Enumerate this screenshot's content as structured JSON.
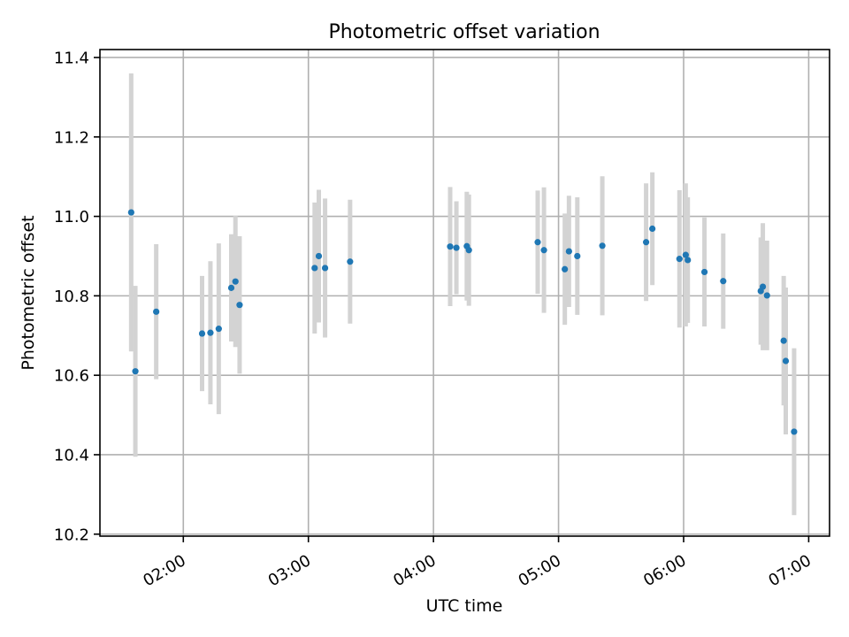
{
  "chart_data": {
    "type": "scatter",
    "title": "Photometric offset variation",
    "xlabel": "UTC time",
    "ylabel": "Photometric offset",
    "x_unit": "UTC time (HH:MM)",
    "xlim": [
      "01:20",
      "07:10"
    ],
    "ylim": [
      10.195,
      11.42
    ],
    "x_ticks": [
      "02:00",
      "03:00",
      "04:00",
      "05:00",
      "06:00",
      "07:00"
    ],
    "y_ticks": [
      "10.2",
      "10.4",
      "10.6",
      "10.8",
      "11.0",
      "11.2",
      "11.4"
    ],
    "grid": true,
    "point_color": "#1f77b4",
    "errorbar_color": "#d3d3d3",
    "series": [
      {
        "points": [
          {
            "t": "01:35",
            "y": 11.01,
            "err": 0.35
          },
          {
            "t": "01:37",
            "y": 10.61,
            "err": 0.215
          },
          {
            "t": "01:47",
            "y": 10.76,
            "err": 0.17
          },
          {
            "t": "02:09",
            "y": 10.705,
            "err": 0.145
          },
          {
            "t": "02:13",
            "y": 10.707,
            "err": 0.18
          },
          {
            "t": "02:17",
            "y": 10.717,
            "err": 0.215
          },
          {
            "t": "02:23",
            "y": 10.82,
            "err": 0.135
          },
          {
            "t": "02:25",
            "y": 10.836,
            "err": 0.165
          },
          {
            "t": "02:27",
            "y": 10.777,
            "err": 0.173
          },
          {
            "t": "03:03",
            "y": 10.87,
            "err": 0.165
          },
          {
            "t": "03:05",
            "y": 10.9,
            "err": 0.167
          },
          {
            "t": "03:08",
            "y": 10.87,
            "err": 0.175
          },
          {
            "t": "03:20",
            "y": 10.886,
            "err": 0.156
          },
          {
            "t": "04:08",
            "y": 10.924,
            "err": 0.15
          },
          {
            "t": "04:11",
            "y": 10.921,
            "err": 0.117
          },
          {
            "t": "04:16",
            "y": 10.925,
            "err": 0.137
          },
          {
            "t": "04:17",
            "y": 10.915,
            "err": 0.14
          },
          {
            "t": "04:50",
            "y": 10.935,
            "err": 0.13
          },
          {
            "t": "04:53",
            "y": 10.915,
            "err": 0.158
          },
          {
            "t": "05:03",
            "y": 10.867,
            "err": 0.14
          },
          {
            "t": "05:05",
            "y": 10.912,
            "err": 0.14
          },
          {
            "t": "05:09",
            "y": 10.9,
            "err": 0.148
          },
          {
            "t": "05:21",
            "y": 10.926,
            "err": 0.175
          },
          {
            "t": "05:42",
            "y": 10.935,
            "err": 0.148
          },
          {
            "t": "05:45",
            "y": 10.969,
            "err": 0.142
          },
          {
            "t": "05:58",
            "y": 10.893,
            "err": 0.173
          },
          {
            "t": "06:01",
            "y": 10.903,
            "err": 0.18
          },
          {
            "t": "06:02",
            "y": 10.89,
            "err": 0.158
          },
          {
            "t": "06:10",
            "y": 10.86,
            "err": 0.137
          },
          {
            "t": "06:19",
            "y": 10.837,
            "err": 0.12
          },
          {
            "t": "06:37",
            "y": 10.812,
            "err": 0.135
          },
          {
            "t": "06:38",
            "y": 10.823,
            "err": 0.16
          },
          {
            "t": "06:40",
            "y": 10.801,
            "err": 0.138
          },
          {
            "t": "06:48",
            "y": 10.687,
            "err": 0.163
          },
          {
            "t": "06:49",
            "y": 10.636,
            "err": 0.185
          },
          {
            "t": "06:53",
            "y": 10.458,
            "err": 0.21
          }
        ]
      }
    ]
  }
}
